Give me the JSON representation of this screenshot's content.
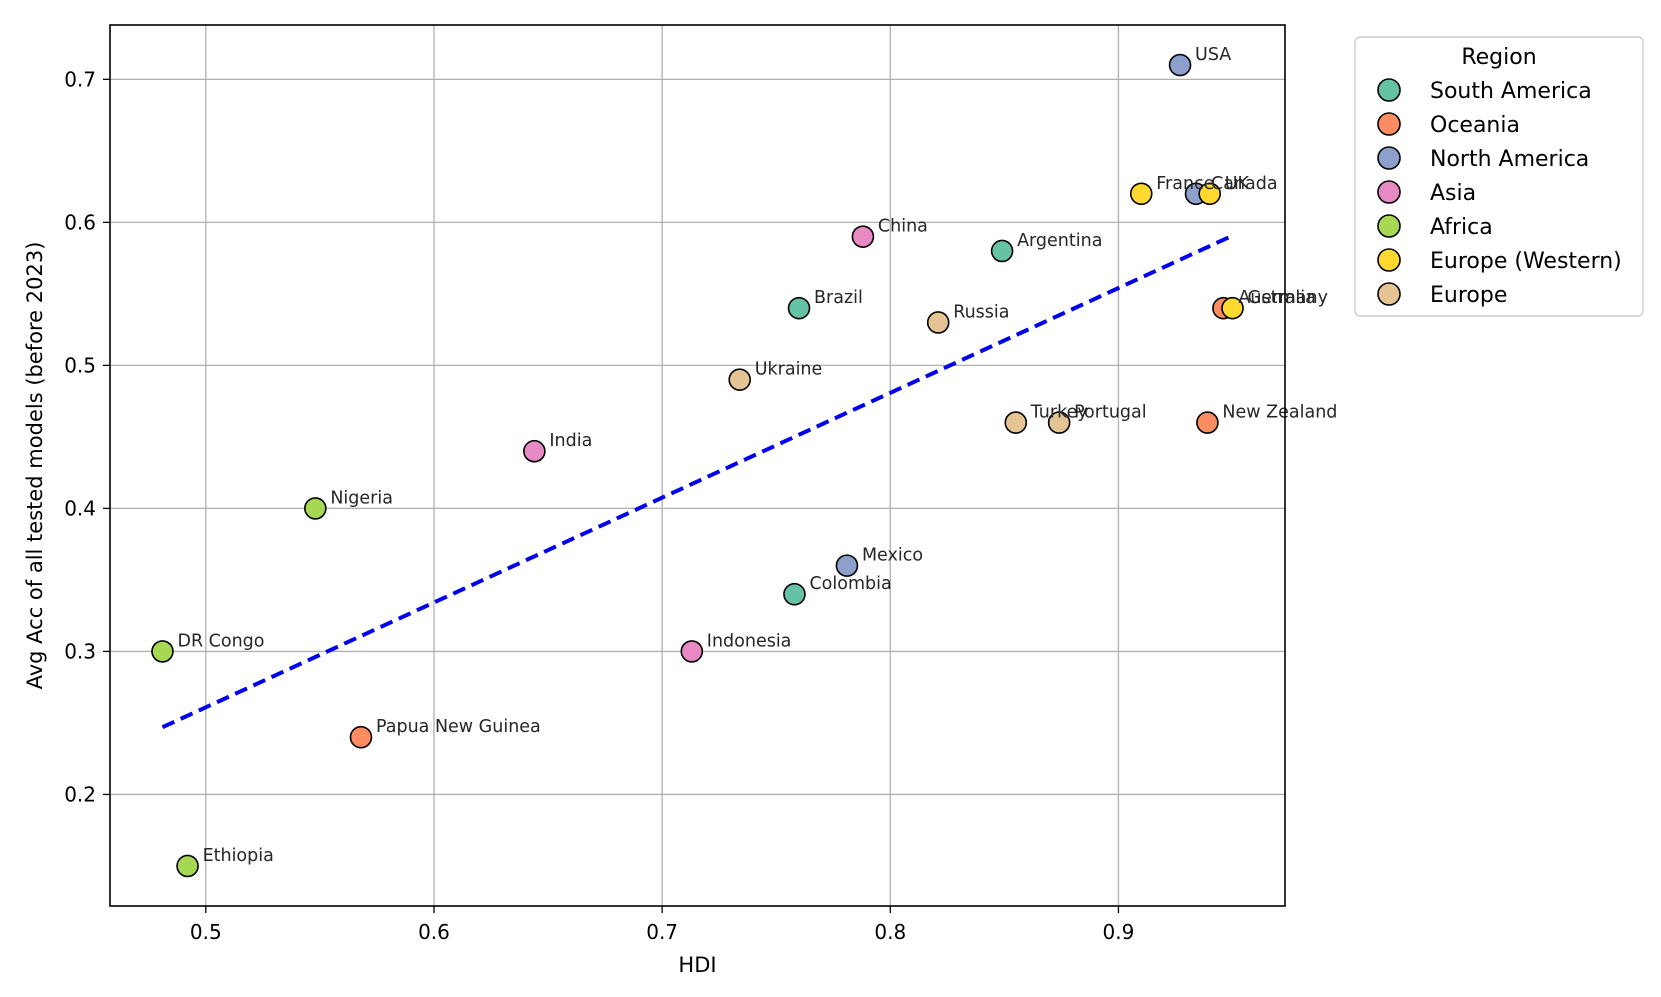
{
  "chart_data": {
    "type": "scatter",
    "title": "",
    "xlabel": "HDI",
    "ylabel": "Avg Acc of all tested models (before 2023)",
    "xlim": [
      0.458,
      0.973
    ],
    "ylim": [
      0.122,
      0.738
    ],
    "xticks": [
      0.5,
      0.6,
      0.7,
      0.8,
      0.9
    ],
    "xtick_labels": [
      "0.5",
      "0.6",
      "0.7",
      "0.8",
      "0.9"
    ],
    "yticks": [
      0.2,
      0.3,
      0.4,
      0.5,
      0.6,
      0.7
    ],
    "ytick_labels": [
      "0.2",
      "0.3",
      "0.4",
      "0.5",
      "0.6",
      "0.7"
    ],
    "grid": true,
    "legend": {
      "title": "Region",
      "placement": "outside-top-right",
      "entries": [
        {
          "name": "South America",
          "color": "#66c2a5"
        },
        {
          "name": "Oceania",
          "color": "#fc8d62"
        },
        {
          "name": "North America",
          "color": "#8da0cb"
        },
        {
          "name": "Asia",
          "color": "#e78ac3"
        },
        {
          "name": "Africa",
          "color": "#a6d854"
        },
        {
          "name": "Europe (Western)",
          "color": "#ffd92f"
        },
        {
          "name": "Europe",
          "color": "#e5c494"
        }
      ]
    },
    "trendline": {
      "style": "dashed",
      "color": "#0000ee",
      "x": [
        0.481,
        0.949
      ],
      "y": [
        0.247,
        0.59
      ]
    },
    "points": [
      {
        "label": "USA",
        "x": 0.927,
        "y": 0.71,
        "region": "North America"
      },
      {
        "label": "France",
        "x": 0.91,
        "y": 0.62,
        "region": "Europe (Western)"
      },
      {
        "label": "Canada",
        "x": 0.934,
        "y": 0.62,
        "region": "North America"
      },
      {
        "label": "UK",
        "x": 0.94,
        "y": 0.62,
        "region": "Europe (Western)"
      },
      {
        "label": "China",
        "x": 0.788,
        "y": 0.59,
        "region": "Asia"
      },
      {
        "label": "Argentina",
        "x": 0.849,
        "y": 0.58,
        "region": "South America"
      },
      {
        "label": "Brazil",
        "x": 0.76,
        "y": 0.54,
        "region": "South America"
      },
      {
        "label": "Russia",
        "x": 0.821,
        "y": 0.53,
        "region": "Europe"
      },
      {
        "label": "Australia",
        "x": 0.946,
        "y": 0.54,
        "region": "Oceania"
      },
      {
        "label": "Germany",
        "x": 0.95,
        "y": 0.54,
        "region": "Europe (Western)"
      },
      {
        "label": "Ukraine",
        "x": 0.734,
        "y": 0.49,
        "region": "Europe"
      },
      {
        "label": "Turkey",
        "x": 0.855,
        "y": 0.46,
        "region": "Europe"
      },
      {
        "label": "Portugal",
        "x": 0.874,
        "y": 0.46,
        "region": "Europe"
      },
      {
        "label": "New Zealand",
        "x": 0.939,
        "y": 0.46,
        "region": "Oceania"
      },
      {
        "label": "India",
        "x": 0.644,
        "y": 0.44,
        "region": "Asia"
      },
      {
        "label": "Nigeria",
        "x": 0.548,
        "y": 0.4,
        "region": "Africa"
      },
      {
        "label": "Mexico",
        "x": 0.781,
        "y": 0.36,
        "region": "North America"
      },
      {
        "label": "Colombia",
        "x": 0.758,
        "y": 0.34,
        "region": "South America"
      },
      {
        "label": "DR Congo",
        "x": 0.481,
        "y": 0.3,
        "region": "Africa"
      },
      {
        "label": "Indonesia",
        "x": 0.713,
        "y": 0.3,
        "region": "Asia"
      },
      {
        "label": "Papua New Guinea",
        "x": 0.568,
        "y": 0.24,
        "region": "Oceania"
      },
      {
        "label": "Ethiopia",
        "x": 0.492,
        "y": 0.15,
        "region": "Africa"
      }
    ]
  }
}
